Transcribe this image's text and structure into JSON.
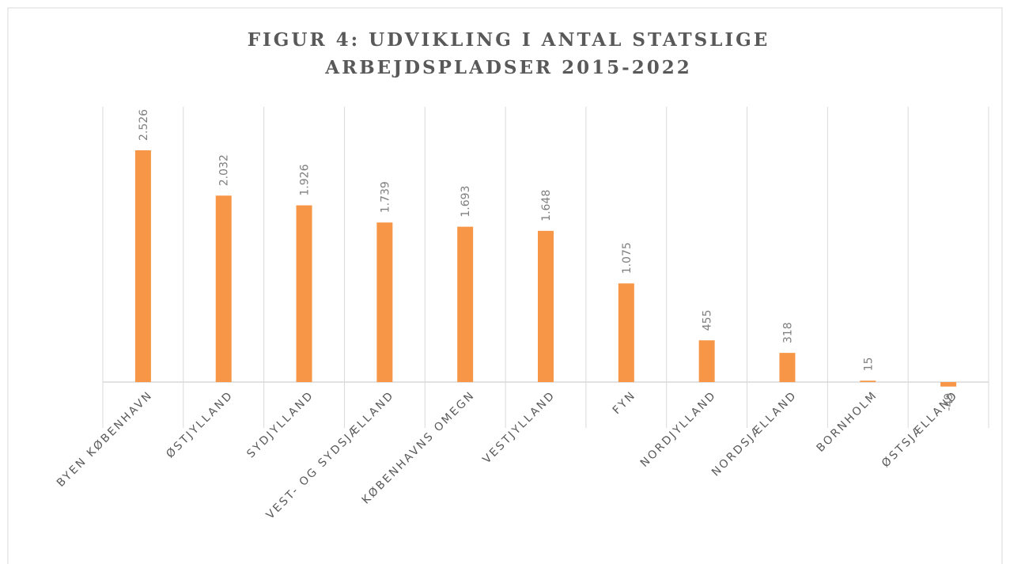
{
  "chart_data": {
    "type": "bar",
    "title": [
      "FIGUR 4: UDVIKLING I ANTAL STATSLIGE",
      "ARBEJDSPLADSER 2015-2022"
    ],
    "categories": [
      "BYEN KØBENHAVN",
      "ØSTJYLLAND",
      "SYDJYLLAND",
      "VEST- OG SYDSJÆLLAND",
      "KØBENHAVNS OMEGN",
      "VESTJYLLAND",
      "FYN",
      "NORDJYLLAND",
      "NORDSJÆLLAND",
      "BORNHOLM",
      "ØSTSJÆLLAND"
    ],
    "values": [
      2526,
      2032,
      1926,
      1739,
      1693,
      1648,
      1075,
      455,
      318,
      15,
      -49
    ],
    "value_labels": [
      "2.526",
      "2.032",
      "1.926",
      "1.739",
      "1.693",
      "1.648",
      "1.075",
      "455",
      "318",
      "15",
      "-49"
    ],
    "color": "#f79646",
    "ylim": [
      -500,
      3000
    ]
  }
}
